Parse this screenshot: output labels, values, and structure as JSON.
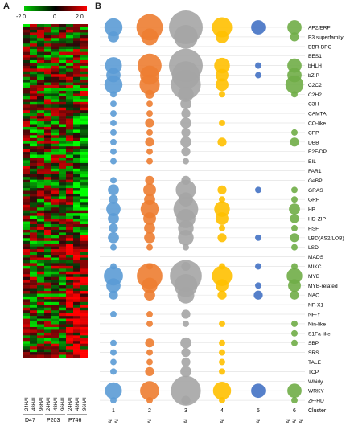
{
  "panel_a": {
    "label": "A",
    "scale": {
      "min_label": "-2.0",
      "mid_label": "0",
      "max_label": "2.0",
      "colors": [
        "#00cc00",
        "#000000",
        "#ff0000"
      ]
    },
    "columns": [
      "D47 24HAI",
      "D47 48HAI",
      "D47 96HAI",
      "P203 24HAI",
      "P203 48HAI",
      "P203 96HAI",
      "P746 24HAI",
      "P746 48HAI",
      "P746 96HAI"
    ],
    "groups": [
      "D47",
      "P203",
      "P746"
    ]
  },
  "panel_b": {
    "label": "B",
    "colors": {
      "blue": "#5b9bd5",
      "orange": "#ed7d31",
      "gray": "#a5a5a5",
      "yellow": "#ffc000",
      "darkblue": "#4472c4",
      "green": "#70ad47"
    }
  },
  "chart_data": {
    "type": "scatter",
    "subtype": "bubble",
    "x_title": "Cluster",
    "clusters": [
      {
        "id": "1",
        "name": "D47 48HAI\nD47 96HAI",
        "color": "#5b9bd5"
      },
      {
        "id": "2",
        "name": "P746 48HAI",
        "color": "#ed7d31"
      },
      {
        "id": "3",
        "name": "P746 96HAI",
        "color": "#a5a5a5"
      },
      {
        "id": "4",
        "name": "P746 24HAI",
        "color": "#ffc000"
      },
      {
        "id": "5",
        "name": "P203 24HAI",
        "color": "#4472c4"
      },
      {
        "id": "6",
        "name": "D47 24HAI\nP203 48HAI\nP203 96HAI",
        "color": "#70ad47"
      }
    ],
    "families": [
      "AP2/ERF",
      "B3 superfamily",
      "BBR-BPC",
      "BES1",
      "bHLH",
      "bZIP",
      "C2C2",
      "C2H2",
      "C3H",
      "CAMTA",
      "CO-like",
      "CPP",
      "DBB",
      "E2F/DP",
      "EIL",
      "FAR1",
      "GeBP",
      "GRAS",
      "GRF",
      "HB",
      "HD-ZIP",
      "HSF",
      "LBD(AS2/LOB)",
      "LSD",
      "MADS",
      "MIKC",
      "MYB",
      "MYB-related",
      "NAC",
      "NF-X1",
      "NF-Y",
      "Nin-like",
      "S1Fa-like",
      "SBP",
      "SRS",
      "TALE",
      "TCP",
      "Whirly",
      "WRKY",
      "ZF-HD"
    ],
    "values": [
      [
        8,
        17,
        28,
        10,
        5,
        5
      ],
      [
        3,
        7,
        14,
        4,
        0,
        2
      ],
      [
        0,
        0,
        0,
        0,
        0,
        0
      ],
      [
        0,
        0,
        0,
        0,
        0,
        0
      ],
      [
        7,
        14,
        28,
        6,
        1,
        5
      ],
      [
        5,
        9,
        19,
        4,
        1,
        5
      ],
      [
        8,
        10,
        22,
        4,
        0,
        8
      ],
      [
        1,
        2,
        6,
        1,
        0,
        1
      ],
      [
        1,
        1,
        3,
        0,
        0,
        0
      ],
      [
        1,
        1,
        2,
        0,
        0,
        0
      ],
      [
        1,
        2,
        3,
        1,
        0,
        0
      ],
      [
        1,
        1,
        2,
        0,
        0,
        1
      ],
      [
        1,
        2,
        3,
        2,
        0,
        2
      ],
      [
        1,
        1,
        2,
        0,
        0,
        0
      ],
      [
        1,
        1,
        1,
        0,
        0,
        0
      ],
      [
        0,
        0,
        0,
        0,
        0,
        0
      ],
      [
        1,
        2,
        2,
        0,
        0,
        0
      ],
      [
        3,
        4,
        10,
        2,
        1,
        1
      ],
      [
        2,
        3,
        5,
        1,
        0,
        1
      ],
      [
        5,
        8,
        15,
        6,
        0,
        3
      ],
      [
        3,
        4,
        9,
        4,
        0,
        2
      ],
      [
        2,
        3,
        6,
        1,
        0,
        1
      ],
      [
        3,
        3,
        6,
        2,
        1,
        2
      ],
      [
        1,
        1,
        1,
        0,
        0,
        1
      ],
      [
        0,
        0,
        0,
        0,
        0,
        0
      ],
      [
        1,
        1,
        2,
        1,
        1,
        1
      ],
      [
        9,
        16,
        25,
        10,
        0,
        6
      ],
      [
        5,
        6,
        13,
        4,
        1,
        4
      ],
      [
        2,
        3,
        7,
        2,
        2,
        2
      ],
      [
        0,
        0,
        0,
        0,
        0,
        0
      ],
      [
        1,
        1,
        2,
        0,
        0,
        0
      ],
      [
        0,
        1,
        1,
        1,
        0,
        1
      ],
      [
        0,
        0,
        0,
        0,
        0,
        1
      ],
      [
        1,
        2,
        3,
        1,
        0,
        1
      ],
      [
        1,
        1,
        2,
        1,
        0,
        0
      ],
      [
        1,
        1,
        2,
        1,
        0,
        0
      ],
      [
        1,
        2,
        3,
        1,
        0,
        0
      ],
      [
        0,
        0,
        0,
        0,
        0,
        0
      ],
      [
        7,
        9,
        22,
        8,
        5,
        5
      ],
      [
        1,
        1,
        2,
        1,
        0,
        1
      ]
    ]
  }
}
